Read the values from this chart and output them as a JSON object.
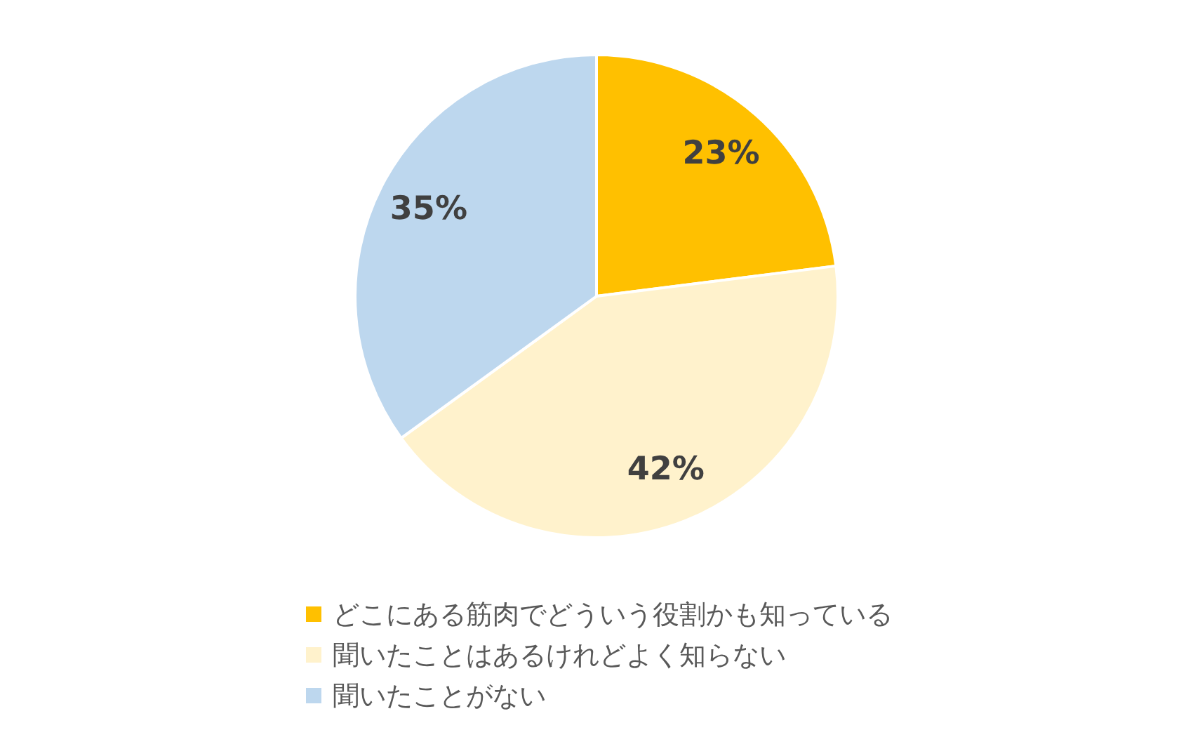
{
  "chart_data": {
    "type": "pie",
    "categories": [
      "どこにある筋肉でどういう役割かも知っている",
      "聞いたことはあるけれどよく知らない",
      "聞いたことがない"
    ],
    "values": [
      23,
      42,
      35
    ],
    "colors": [
      "#ffc000",
      "#fff2cc",
      "#bdd7ee"
    ],
    "value_labels": [
      "23%",
      "42%",
      "35%"
    ],
    "legend": "bottom"
  }
}
